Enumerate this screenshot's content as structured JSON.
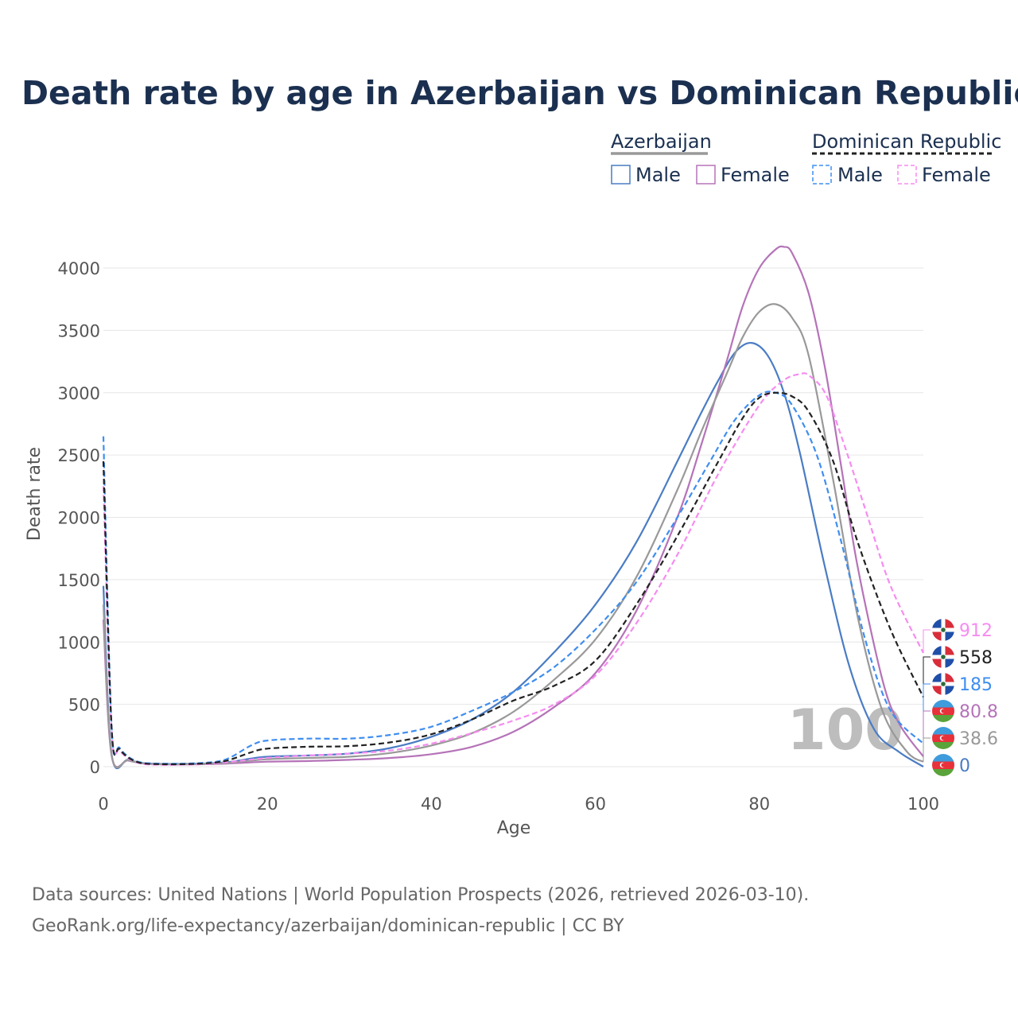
{
  "title": "Death rate by age in Azerbaijan vs Dominican Republic",
  "legend": {
    "groups": [
      {
        "label": "Azerbaijan",
        "style": "solid",
        "color": "#999999",
        "items": [
          {
            "label": "Male",
            "color": "#4a7cc4"
          },
          {
            "label": "Female",
            "color": "#b573b8"
          }
        ]
      },
      {
        "label": "Dominican Republic",
        "style": "dashed",
        "color": "#222222",
        "items": [
          {
            "label": "Male",
            "color": "#3f8ef0"
          },
          {
            "label": "Female",
            "color": "#f68cf0"
          }
        ]
      }
    ]
  },
  "age_marker": "100",
  "end_labels": [
    {
      "text": "912",
      "color": "#f68cf0",
      "flag": "dominican-republic"
    },
    {
      "text": "558",
      "color": "#222222",
      "flag": "dominican-republic"
    },
    {
      "text": "185",
      "color": "#3f8ef0",
      "flag": "dominican-republic"
    },
    {
      "text": "80.8",
      "color": "#b573b8",
      "flag": "azerbaijan"
    },
    {
      "text": "38.6",
      "color": "#999999",
      "flag": "azerbaijan"
    },
    {
      "text": "0",
      "color": "#4a7cc4",
      "flag": "azerbaijan"
    }
  ],
  "source": {
    "line1": "Data sources: United Nations | World Population Prospects (2026, retrieved 2026-03-10).",
    "line2": "GeoRank.org/life-expectancy/azerbaijan/dominican-republic | CC BY"
  },
  "chart_data": {
    "type": "line",
    "title": "Death rate by age in Azerbaijan vs Dominican Republic",
    "xlabel": "Age",
    "ylabel": "Death rate",
    "xlim": [
      0,
      100
    ],
    "ylim": [
      0,
      4200
    ],
    "xticks": [
      0,
      20,
      40,
      60,
      80,
      100
    ],
    "yticks": [
      0,
      500,
      1000,
      1500,
      2000,
      2500,
      3000,
      3500,
      4000
    ],
    "grid": true,
    "legend_position": "top-right",
    "series": [
      {
        "name": "Azerbaijan Male",
        "country": "Azerbaijan",
        "sex": "Male",
        "dash": false,
        "color": "#4a7cc4",
        "x": [
          0,
          1,
          3,
          5,
          8,
          12,
          15,
          18,
          20,
          25,
          30,
          35,
          40,
          45,
          50,
          55,
          60,
          65,
          70,
          73,
          75,
          77,
          79,
          81,
          83,
          85,
          88,
          91,
          94,
          97,
          100
        ],
        "y": [
          1450,
          100,
          55,
          28,
          22,
          25,
          35,
          65,
          80,
          90,
          105,
          150,
          240,
          380,
          600,
          920,
          1300,
          1800,
          2450,
          2850,
          3100,
          3320,
          3400,
          3300,
          3000,
          2500,
          1600,
          800,
          300,
          120,
          0
        ]
      },
      {
        "name": "Azerbaijan Female",
        "country": "Azerbaijan",
        "sex": "Female",
        "dash": false,
        "color": "#b573b8",
        "x": [
          0,
          1,
          3,
          5,
          8,
          12,
          15,
          20,
          25,
          30,
          35,
          40,
          45,
          50,
          55,
          60,
          65,
          70,
          73,
          76,
          78,
          80,
          82,
          83,
          84,
          86,
          88,
          90,
          92,
          95,
          97,
          100
        ],
        "y": [
          1180,
          90,
          50,
          25,
          18,
          20,
          25,
          40,
          45,
          55,
          70,
          100,
          160,
          280,
          480,
          750,
          1250,
          2000,
          2600,
          3250,
          3700,
          4000,
          4150,
          4170,
          4120,
          3800,
          3200,
          2400,
          1600,
          700,
          350,
          80.8
        ]
      },
      {
        "name": "Azerbaijan Total",
        "country": "Azerbaijan",
        "sex": "Total",
        "dash": false,
        "color": "#999999",
        "x": [
          0,
          1,
          3,
          5,
          8,
          12,
          15,
          20,
          25,
          30,
          35,
          40,
          45,
          50,
          55,
          60,
          65,
          70,
          73,
          76,
          78,
          80,
          82,
          84,
          86,
          89,
          92,
          95,
          98,
          100
        ],
        "y": [
          1300,
          95,
          52,
          26,
          20,
          22,
          30,
          60,
          70,
          80,
          110,
          170,
          270,
          440,
          700,
          1020,
          1520,
          2220,
          2700,
          3150,
          3450,
          3650,
          3710,
          3600,
          3300,
          2300,
          1200,
          450,
          120,
          38.6
        ]
      },
      {
        "name": "Dominican Republic Male",
        "country": "Dominican Republic",
        "sex": "Male",
        "dash": true,
        "color": "#3f8ef0",
        "x": [
          0,
          1,
          2,
          4,
          7,
          12,
          15,
          18,
          20,
          25,
          30,
          35,
          40,
          45,
          50,
          55,
          60,
          65,
          70,
          74,
          77,
          80,
          82,
          84,
          87,
          90,
          93,
          96,
          100
        ],
        "y": [
          2650,
          330,
          150,
          45,
          25,
          30,
          60,
          170,
          210,
          225,
          225,
          255,
          320,
          450,
          600,
          800,
          1100,
          1480,
          2000,
          2450,
          2780,
          2980,
          3000,
          2900,
          2500,
          1800,
          1000,
          450,
          185
        ]
      },
      {
        "name": "Dominican Republic Female",
        "country": "Dominican Republic",
        "sex": "Female",
        "dash": true,
        "color": "#f68cf0",
        "x": [
          0,
          1,
          2,
          4,
          7,
          12,
          15,
          20,
          25,
          30,
          35,
          40,
          45,
          50,
          55,
          60,
          65,
          70,
          75,
          80,
          83,
          85,
          86,
          88,
          90,
          93,
          96,
          100
        ],
        "y": [
          2250,
          290,
          130,
          35,
          15,
          20,
          35,
          70,
          90,
          105,
          130,
          185,
          270,
          370,
          500,
          730,
          1150,
          1700,
          2350,
          2900,
          3100,
          3150,
          3140,
          3000,
          2650,
          2050,
          1450,
          912
        ]
      },
      {
        "name": "Dominican Republic Total",
        "country": "Dominican Republic",
        "sex": "Total",
        "dash": true,
        "color": "#222222",
        "x": [
          0,
          1,
          2,
          4,
          7,
          12,
          15,
          18,
          20,
          25,
          30,
          35,
          40,
          45,
          50,
          55,
          60,
          65,
          70,
          75,
          78,
          80,
          82,
          84,
          86,
          89,
          92,
          96,
          100
        ],
        "y": [
          2450,
          310,
          140,
          40,
          20,
          25,
          48,
          115,
          145,
          160,
          165,
          195,
          260,
          380,
          530,
          650,
          850,
          1300,
          1850,
          2450,
          2800,
          2960,
          3000,
          2970,
          2850,
          2450,
          1800,
          1100,
          558
        ]
      }
    ]
  }
}
